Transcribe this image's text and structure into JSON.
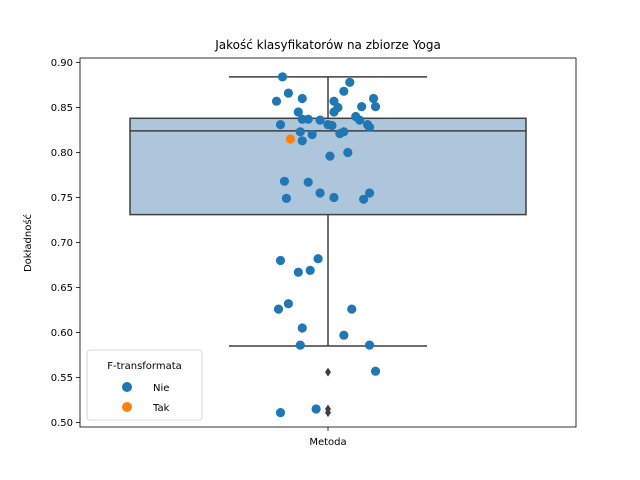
{
  "chart_data": {
    "type": "box+strip",
    "title": "Jakość klasyfikatorów na zbiorze Yoga",
    "xlabel": "",
    "ylabel": "Dokładność",
    "categories": [
      "Metoda"
    ],
    "ylim": [
      0.495,
      0.905
    ],
    "yticks": [
      0.5,
      0.55,
      0.6,
      0.65,
      0.7,
      0.75,
      0.8,
      0.85,
      0.9
    ],
    "ytick_labels": [
      "0.50",
      "0.55",
      "0.60",
      "0.65",
      "0.70",
      "0.75",
      "0.80",
      "0.85",
      "0.90"
    ],
    "grid": false,
    "box": {
      "whisker_low": 0.585,
      "q1": 0.731,
      "median": 0.824,
      "q3": 0.838,
      "whisker_high": 0.884,
      "fliers": [
        0.556,
        0.515,
        0.511
      ],
      "color": "#aec6dc"
    },
    "legend": {
      "title": "F-transformata",
      "placement": "lower-left",
      "entries": [
        {
          "label": "Nie",
          "color": "#1f77b4"
        },
        {
          "label": "Tak",
          "color": "#ff7f0e"
        }
      ]
    },
    "series": [
      {
        "name": "Nie",
        "color": "#1f77b4",
        "points": [
          {
            "jitter": -0.23,
            "y": 0.884
          },
          {
            "jitter": -0.2,
            "y": 0.866
          },
          {
            "jitter": -0.26,
            "y": 0.857
          },
          {
            "jitter": -0.13,
            "y": 0.86
          },
          {
            "jitter": 0.11,
            "y": 0.878
          },
          {
            "jitter": 0.08,
            "y": 0.868
          },
          {
            "jitter": 0.23,
            "y": 0.86
          },
          {
            "jitter": 0.24,
            "y": 0.851
          },
          {
            "jitter": 0.17,
            "y": 0.851
          },
          {
            "jitter": 0.03,
            "y": 0.857
          },
          {
            "jitter": 0.05,
            "y": 0.85
          },
          {
            "jitter": 0.03,
            "y": 0.845
          },
          {
            "jitter": -0.15,
            "y": 0.845
          },
          {
            "jitter": -0.13,
            "y": 0.837
          },
          {
            "jitter": -0.1,
            "y": 0.837
          },
          {
            "jitter": -0.04,
            "y": 0.836
          },
          {
            "jitter": 0.0,
            "y": 0.831
          },
          {
            "jitter": 0.02,
            "y": 0.83
          },
          {
            "jitter": 0.14,
            "y": 0.84
          },
          {
            "jitter": 0.16,
            "y": 0.836
          },
          {
            "jitter": 0.2,
            "y": 0.831
          },
          {
            "jitter": 0.21,
            "y": 0.828
          },
          {
            "jitter": -0.24,
            "y": 0.831
          },
          {
            "jitter": -0.14,
            "y": 0.823
          },
          {
            "jitter": -0.08,
            "y": 0.82
          },
          {
            "jitter": 0.08,
            "y": 0.823
          },
          {
            "jitter": 0.06,
            "y": 0.821
          },
          {
            "jitter": -0.13,
            "y": 0.813
          },
          {
            "jitter": 0.1,
            "y": 0.8
          },
          {
            "jitter": 0.01,
            "y": 0.796
          },
          {
            "jitter": -0.22,
            "y": 0.768
          },
          {
            "jitter": -0.1,
            "y": 0.767
          },
          {
            "jitter": -0.21,
            "y": 0.749
          },
          {
            "jitter": -0.04,
            "y": 0.755
          },
          {
            "jitter": 0.03,
            "y": 0.75
          },
          {
            "jitter": 0.21,
            "y": 0.755
          },
          {
            "jitter": 0.18,
            "y": 0.748
          },
          {
            "jitter": -0.24,
            "y": 0.68
          },
          {
            "jitter": -0.05,
            "y": 0.682
          },
          {
            "jitter": -0.15,
            "y": 0.667
          },
          {
            "jitter": -0.09,
            "y": 0.669
          },
          {
            "jitter": -0.2,
            "y": 0.632
          },
          {
            "jitter": -0.25,
            "y": 0.626
          },
          {
            "jitter": 0.12,
            "y": 0.626
          },
          {
            "jitter": -0.13,
            "y": 0.605
          },
          {
            "jitter": 0.08,
            "y": 0.597
          },
          {
            "jitter": -0.14,
            "y": 0.586
          },
          {
            "jitter": 0.21,
            "y": 0.586
          },
          {
            "jitter": 0.24,
            "y": 0.557
          },
          {
            "jitter": -0.06,
            "y": 0.515
          },
          {
            "jitter": -0.24,
            "y": 0.511
          }
        ]
      },
      {
        "name": "Tak",
        "color": "#ff7f0e",
        "points": [
          {
            "jitter": -0.19,
            "y": 0.815
          }
        ]
      }
    ]
  }
}
